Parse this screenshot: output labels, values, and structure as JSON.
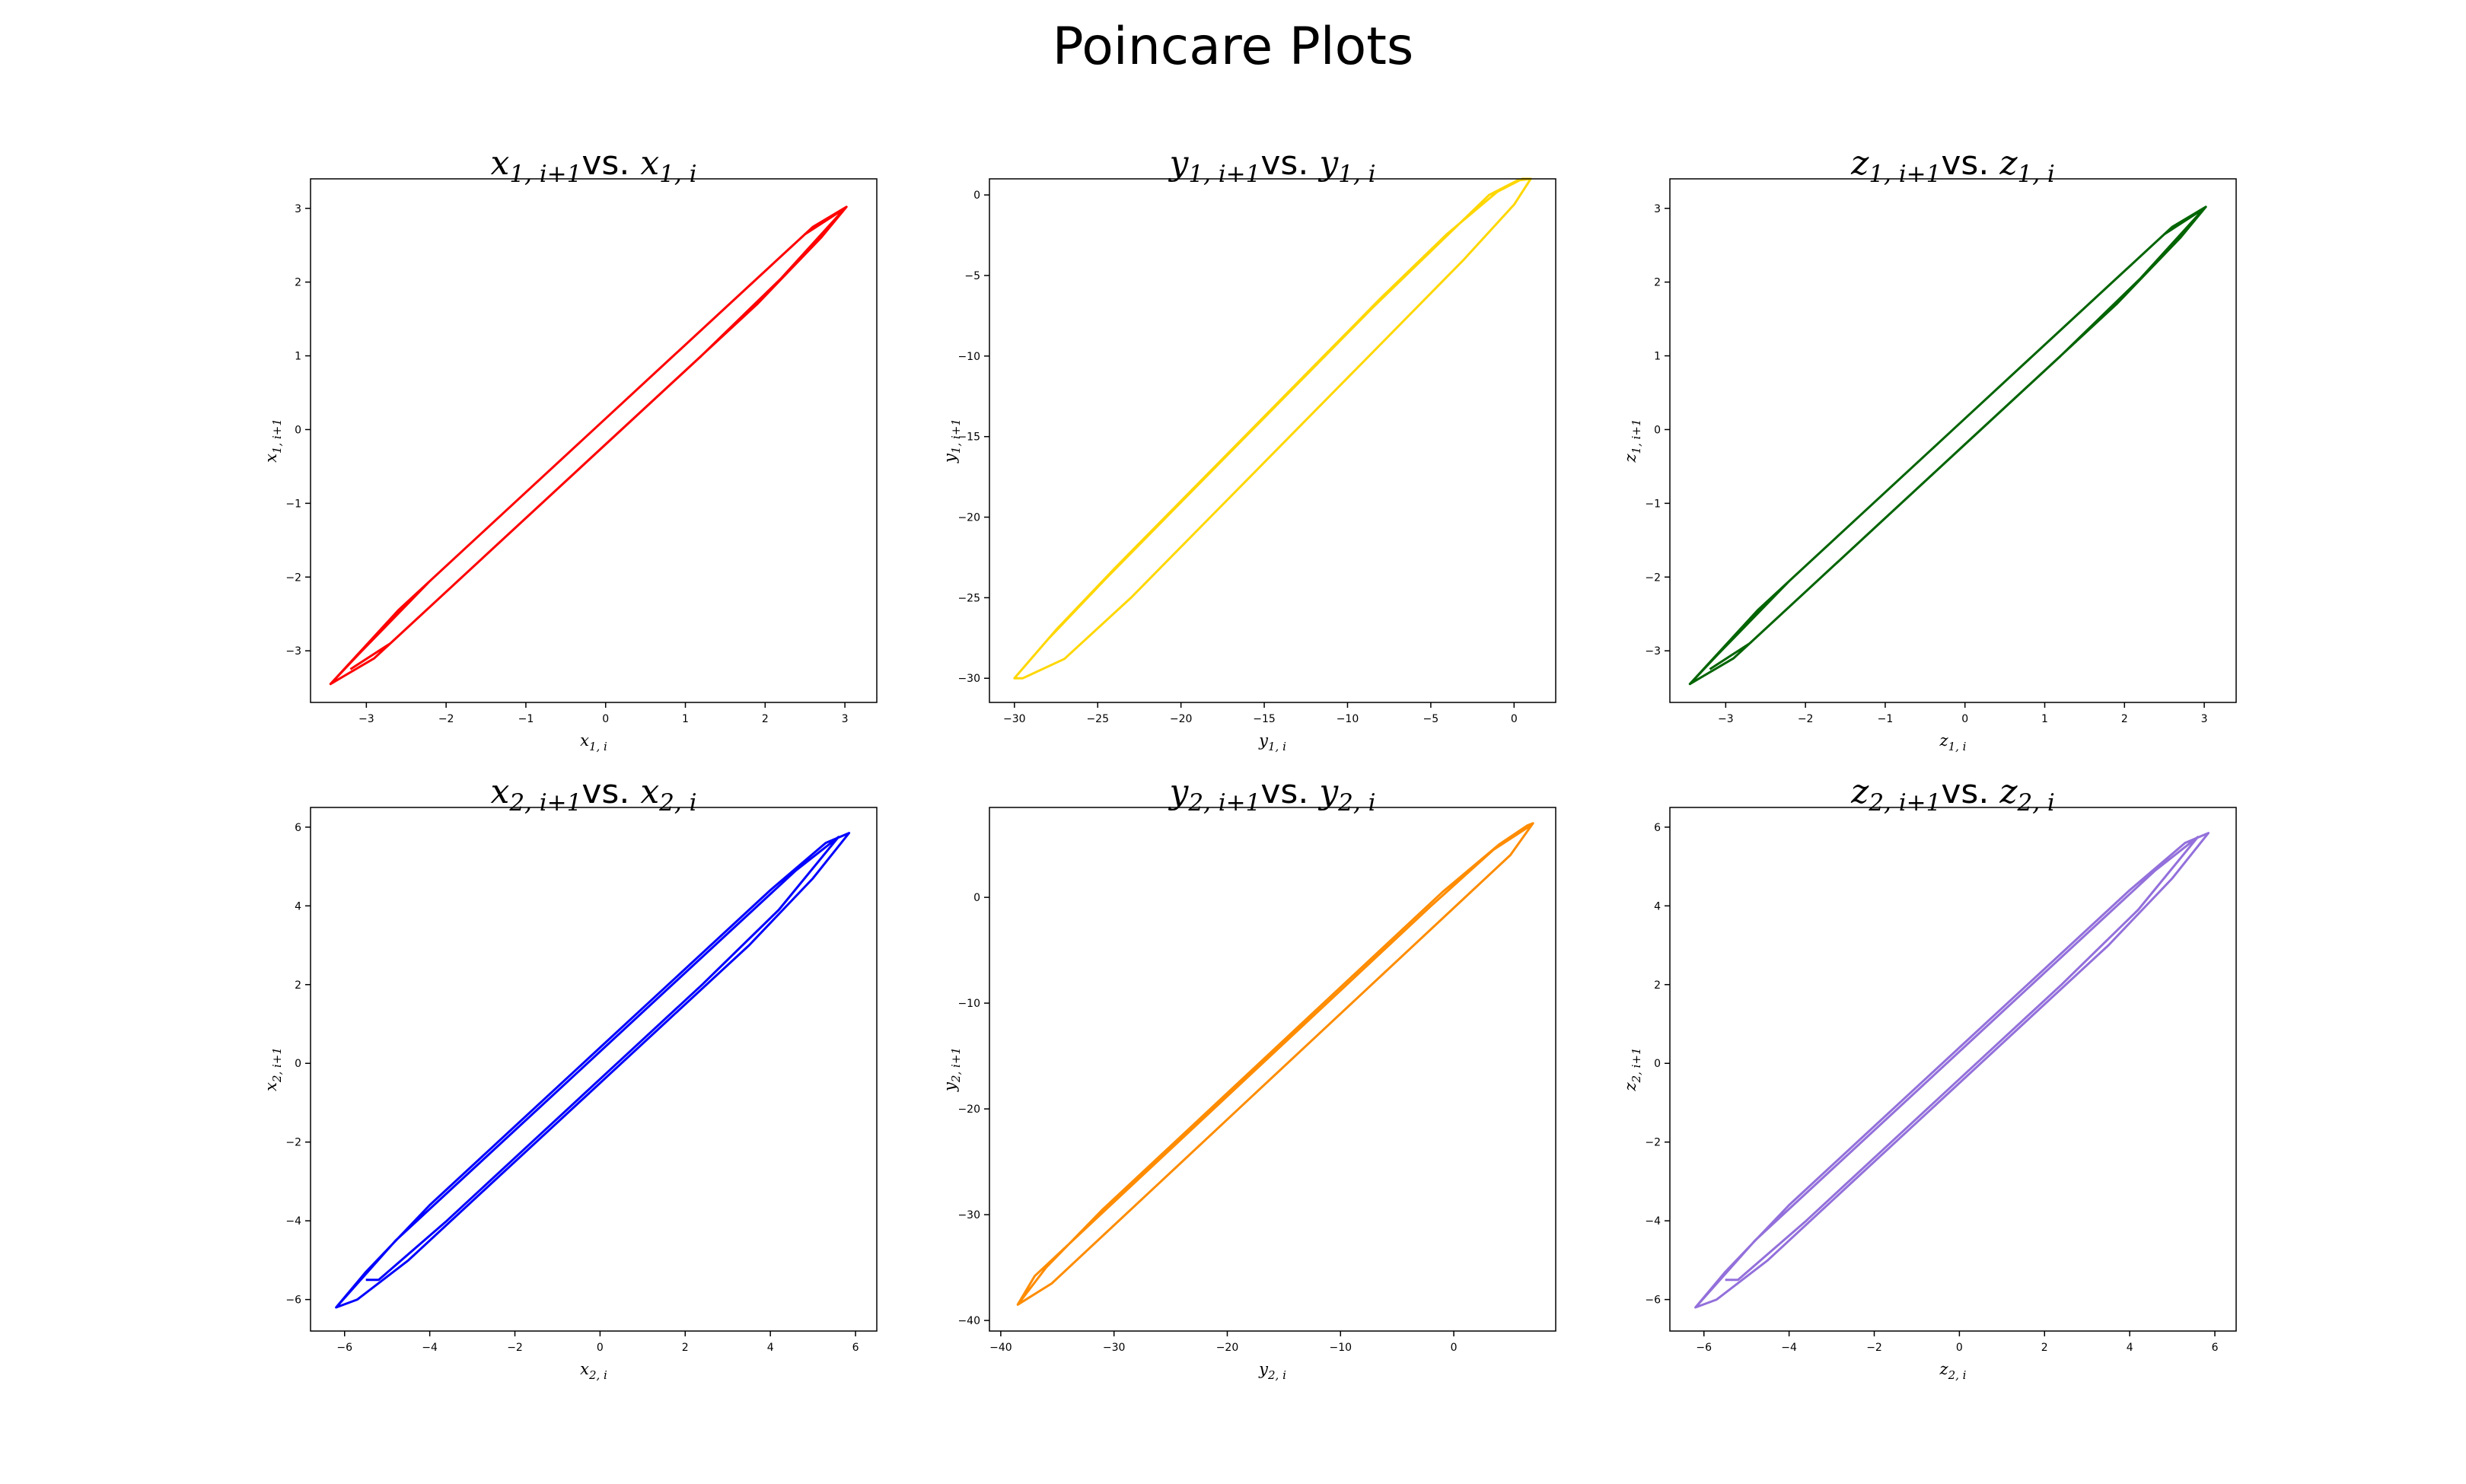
{
  "suptitle": "Poincare Plots",
  "chart_data": [
    {
      "type": "line",
      "title": {
        "lhs": "x",
        "lhs_sub": "1, i+1",
        "vs": "vs.",
        "rhs": "x",
        "rhs_sub": "1, i"
      },
      "xlabel": {
        "var": "x",
        "sub": "1, i"
      },
      "ylabel": {
        "var": "x",
        "sub": "1, i+1"
      },
      "xlim": [
        -3.7,
        3.4
      ],
      "ylim": [
        -3.7,
        3.4
      ],
      "xticks": [
        -3,
        -2,
        -1,
        0,
        1,
        2,
        3
      ],
      "yticks": [
        -3,
        -2,
        -1,
        0,
        1,
        2,
        3
      ],
      "color": "#ff0000",
      "x": [
        -3.45,
        -3.1,
        -2.2,
        -1.2,
        -0.2,
        0.8,
        1.8,
        2.6,
        3.02,
        2.7,
        1.9,
        0.9,
        -0.1,
        -1.1,
        -2.1,
        -2.9,
        -3.45,
        -2.6,
        -1.5,
        -0.4,
        0.6,
        1.6,
        2.5,
        3.0,
        2.2,
        1.2,
        0.2,
        -0.8,
        -1.8,
        -2.7,
        -3.2
      ],
      "y": [
        -3.45,
        -3.05,
        -2.05,
        -1.05,
        -0.05,
        0.95,
        1.95,
        2.75,
        3.02,
        2.6,
        1.7,
        0.7,
        -0.3,
        -1.3,
        -2.3,
        -3.1,
        -3.45,
        -2.45,
        -1.35,
        -0.25,
        0.75,
        1.75,
        2.65,
        3.0,
        2.05,
        1.0,
        0.0,
        -1.0,
        -2.0,
        -2.9,
        -3.25
      ]
    },
    {
      "type": "line",
      "title": {
        "lhs": "y",
        "lhs_sub": "1, i+1",
        "vs": "vs.",
        "rhs": "y",
        "rhs_sub": "1, i"
      },
      "xlabel": {
        "var": "y",
        "sub": "1, i"
      },
      "ylabel": {
        "var": "y",
        "sub": "1, i+1"
      },
      "xlim": [
        -31.5,
        2.5
      ],
      "ylim": [
        -31.5,
        1.0
      ],
      "xticks": [
        -30,
        -25,
        -20,
        -15,
        -10,
        -5,
        0
      ],
      "yticks": [
        -30,
        -25,
        -20,
        -15,
        -10,
        -5,
        0
      ],
      "color": "#ffd700",
      "x": [
        -30.0,
        -27.5,
        -24.0,
        -20.0,
        -16.0,
        -12.0,
        -8.0,
        -4.0,
        -1.0,
        0.5,
        1.0,
        0.0,
        -3.0,
        -7.0,
        -11.0,
        -15.0,
        -19.0,
        -23.0,
        -27.0,
        -29.5,
        -30.0,
        -28.0,
        -24.5,
        -20.5,
        -16.5,
        -12.5,
        -8.5,
        -4.5,
        -1.5,
        0.2,
        1.0
      ],
      "y": [
        -30.0,
        -27.0,
        -23.2,
        -19.0,
        -14.8,
        -10.6,
        -6.4,
        -2.4,
        0.2,
        1.0,
        1.0,
        -0.6,
        -4.0,
        -8.2,
        -12.4,
        -16.6,
        -20.8,
        -25.0,
        -28.8,
        -30.0,
        -30.0,
        -27.6,
        -23.8,
        -19.6,
        -15.4,
        -11.2,
        -7.0,
        -3.0,
        0.0,
        0.9,
        1.0
      ]
    },
    {
      "type": "line",
      "title": {
        "lhs": "z",
        "lhs_sub": "1, i+1",
        "vs": "vs.",
        "rhs": "z",
        "rhs_sub": "1, i"
      },
      "xlabel": {
        "var": "z",
        "sub": "1, i"
      },
      "ylabel": {
        "var": "z",
        "sub": "1, i+1"
      },
      "xlim": [
        -3.7,
        3.4
      ],
      "ylim": [
        -3.7,
        3.4
      ],
      "xticks": [
        -3,
        -2,
        -1,
        0,
        1,
        2,
        3
      ],
      "yticks": [
        -3,
        -2,
        -1,
        0,
        1,
        2,
        3
      ],
      "color": "#006400",
      "x": [
        -3.45,
        -3.1,
        -2.2,
        -1.2,
        -0.2,
        0.8,
        1.8,
        2.6,
        3.02,
        2.7,
        1.9,
        0.9,
        -0.1,
        -1.1,
        -2.1,
        -2.9,
        -3.45,
        -2.6,
        -1.5,
        -0.4,
        0.6,
        1.6,
        2.5,
        3.0,
        2.2,
        1.2,
        0.2,
        -0.8,
        -1.8,
        -2.7,
        -3.2
      ],
      "y": [
        -3.45,
        -3.05,
        -2.05,
        -1.05,
        -0.05,
        0.95,
        1.95,
        2.75,
        3.02,
        2.6,
        1.7,
        0.7,
        -0.3,
        -1.3,
        -2.3,
        -3.1,
        -3.45,
        -2.45,
        -1.35,
        -0.25,
        0.75,
        1.75,
        2.65,
        3.0,
        2.05,
        1.0,
        0.0,
        -1.0,
        -2.0,
        -2.9,
        -3.25
      ]
    },
    {
      "type": "line",
      "title": {
        "lhs": "x",
        "lhs_sub": "2, i+1",
        "vs": "vs.",
        "rhs": "x",
        "rhs_sub": "2, i"
      },
      "xlabel": {
        "var": "x",
        "sub": "2, i"
      },
      "ylabel": {
        "var": "x",
        "sub": "2, i+1"
      },
      "xlim": [
        -6.8,
        6.5
      ],
      "ylim": [
        -6.8,
        6.5
      ],
      "xticks": [
        -6,
        -4,
        -2,
        0,
        2,
        4,
        6
      ],
      "yticks": [
        -6,
        -4,
        -2,
        0,
        2,
        4,
        6
      ],
      "color": "#0000ff",
      "x": [
        -6.2,
        -5.5,
        -4.0,
        -2.0,
        0.0,
        2.0,
        4.0,
        5.3,
        5.85,
        5.0,
        3.5,
        1.5,
        -0.5,
        -2.5,
        -4.5,
        -5.7,
        -6.2,
        -4.8,
        -3.0,
        -1.0,
        1.0,
        3.0,
        4.6,
        5.6,
        4.2,
        2.4,
        0.4,
        -1.6,
        -3.6,
        -5.2,
        -5.5
      ],
      "y": [
        -6.2,
        -5.3,
        -3.6,
        -1.6,
        0.4,
        2.4,
        4.4,
        5.6,
        5.85,
        4.7,
        3.0,
        1.0,
        -1.0,
        -3.0,
        -5.0,
        -6.0,
        -6.2,
        -4.5,
        -2.7,
        -0.7,
        1.3,
        3.3,
        4.9,
        5.75,
        3.9,
        2.0,
        0.0,
        -2.0,
        -4.0,
        -5.5,
        -5.5
      ]
    },
    {
      "type": "line",
      "title": {
        "lhs": "y",
        "lhs_sub": "2, i+1",
        "vs": "vs.",
        "rhs": "y",
        "rhs_sub": "2, i"
      },
      "xlabel": {
        "var": "y",
        "sub": "2, i"
      },
      "ylabel": {
        "var": "y",
        "sub": "2, i+1"
      },
      "xlim": [
        -41.0,
        9.0
      ],
      "ylim": [
        -41.0,
        8.5
      ],
      "xticks": [
        -40,
        -30,
        -20,
        -10,
        0
      ],
      "yticks": [
        -40,
        -30,
        -20,
        -10,
        0
      ],
      "color": "#ff8c00",
      "x": [
        -38.5,
        -36.0,
        -31.0,
        -25.0,
        -19.0,
        -13.0,
        -7.0,
        -1.0,
        4.0,
        6.5,
        7.0,
        5.0,
        0.0,
        -6.0,
        -12.0,
        -18.0,
        -24.0,
        -30.0,
        -35.5,
        -38.5,
        -37.0,
        -32.0,
        -26.0,
        -20.0,
        -14.0,
        -8.0,
        -2.0,
        3.5,
        6.8
      ],
      "y": [
        -38.5,
        -35.0,
        -29.5,
        -23.5,
        -17.5,
        -11.5,
        -5.5,
        0.5,
        5.0,
        6.8,
        7.0,
        4.0,
        -1.0,
        -7.0,
        -13.0,
        -19.0,
        -25.0,
        -31.0,
        -36.5,
        -38.5,
        -35.8,
        -30.8,
        -24.8,
        -18.8,
        -12.8,
        -6.8,
        -0.8,
        4.5,
        6.8
      ]
    },
    {
      "type": "line",
      "title": {
        "lhs": "z",
        "lhs_sub": "2, i+1",
        "vs": "vs.",
        "rhs": "z",
        "rhs_sub": "2, i"
      },
      "xlabel": {
        "var": "z",
        "sub": "2, i"
      },
      "ylabel": {
        "var": "z",
        "sub": "2, i+1"
      },
      "xlim": [
        -6.8,
        6.5
      ],
      "ylim": [
        -6.8,
        6.5
      ],
      "xticks": [
        -6,
        -4,
        -2,
        0,
        2,
        4,
        6
      ],
      "yticks": [
        -6,
        -4,
        -2,
        0,
        2,
        4,
        6
      ],
      "color": "#9370db",
      "x": [
        -6.2,
        -5.5,
        -4.0,
        -2.0,
        0.0,
        2.0,
        4.0,
        5.3,
        5.85,
        5.0,
        3.5,
        1.5,
        -0.5,
        -2.5,
        -4.5,
        -5.7,
        -6.2,
        -4.8,
        -3.0,
        -1.0,
        1.0,
        3.0,
        4.6,
        5.6,
        4.2,
        2.4,
        0.4,
        -1.6,
        -3.6,
        -5.2,
        -5.5
      ],
      "y": [
        -6.2,
        -5.3,
        -3.6,
        -1.6,
        0.4,
        2.4,
        4.4,
        5.6,
        5.85,
        4.7,
        3.0,
        1.0,
        -1.0,
        -3.0,
        -5.0,
        -6.0,
        -6.2,
        -4.5,
        -2.7,
        -0.7,
        1.3,
        3.3,
        4.9,
        5.75,
        3.9,
        2.0,
        0.0,
        -2.0,
        -4.0,
        -5.5,
        -5.5
      ]
    }
  ]
}
